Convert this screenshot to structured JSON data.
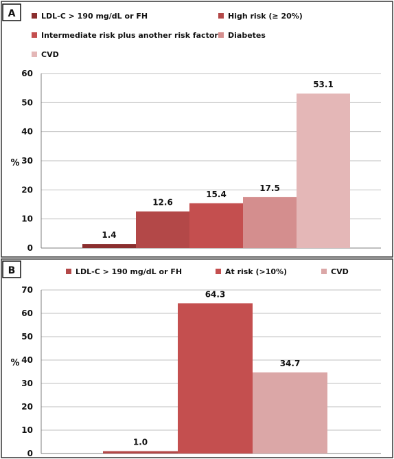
{
  "chart_data": [
    {
      "panel": "A",
      "type": "bar",
      "ylabel": "%",
      "ylim": [
        0,
        60
      ],
      "yticks": [
        0,
        10,
        20,
        30,
        40,
        50,
        60
      ],
      "grid": true,
      "legend_position": "top",
      "series": [
        {
          "name": "LDL-C > 190 mg/dL or FH",
          "value": 1.4,
          "label": "1.4",
          "color": "#8b2e2e"
        },
        {
          "name": "High risk (≥ 20%)",
          "value": 12.6,
          "label": "12.6",
          "color": "#b34848"
        },
        {
          "name": "Intermediate risk plus another risk factor",
          "value": 15.4,
          "label": "15.4",
          "color": "#c44f4f"
        },
        {
          "name": "Diabetes",
          "value": 17.5,
          "label": "17.5",
          "color": "#d48e8e"
        },
        {
          "name": "CVD",
          "value": 53.1,
          "label": "53.1",
          "color": "#e4b7b7"
        }
      ]
    },
    {
      "panel": "B",
      "type": "bar",
      "ylabel": "%",
      "ylim": [
        0,
        70
      ],
      "yticks": [
        0,
        10,
        20,
        30,
        40,
        50,
        60,
        70
      ],
      "grid": true,
      "legend_position": "top",
      "series": [
        {
          "name": "LDL-C > 190 mg/dL or FH",
          "value": 1.0,
          "label": "1.0",
          "color": "#b34848"
        },
        {
          "name": "At risk (>10%)",
          "value": 64.3,
          "label": "64.3",
          "color": "#c44f4f"
        },
        {
          "name": "CVD",
          "value": 34.7,
          "label": "34.7",
          "color": "#dba7a7"
        }
      ]
    }
  ],
  "colors": {
    "axis": "#7f7f7f",
    "grid": "#bfbfbf",
    "border": "#333333"
  }
}
